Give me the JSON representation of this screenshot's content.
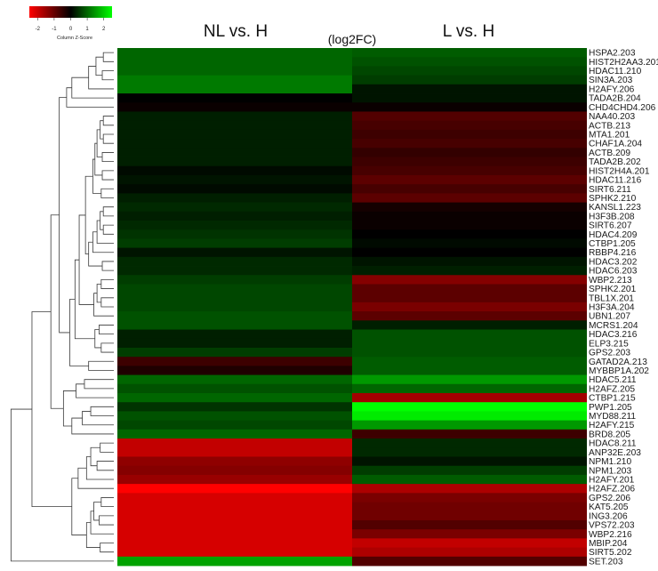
{
  "chart_data": {
    "type": "heatmap",
    "title": "(log2FC)",
    "columns": [
      "NL vs. H",
      "L vs. H"
    ],
    "rows": [
      "HSPA2.203",
      "HIST2H2AA3.201",
      "HDAC11.210",
      "SIN3A.203",
      "H2AFY.206",
      "TADA2B.204",
      "CHD4CHD4.206",
      "NAA40.203",
      "ACTB.213",
      "MTA1.201",
      "CHAF1A.204",
      "ACTB.209",
      "TADA2B.202",
      "HIST2H4A.201",
      "HDAC11.216",
      "SIRT6.211",
      "SPHK2.210",
      "KANSL1.223",
      "H3F3B.208",
      "SIRT6.207",
      "HDAC4.209",
      "CTBP1.205",
      "RBBP4.216",
      "HDAC3.202",
      "HDAC6.203",
      "WBP2.213",
      "SPHK2.201",
      "TBL1X.201",
      "H3F3A.204",
      "UBN1.207",
      "MCRS1.204",
      "HDAC3.216",
      "ELP3.215",
      "GPS2.203",
      "GATAD2A.213",
      "MYBBP1A.202",
      "HDAC5.211",
      "H2AFZ.205",
      "CTBP1.215",
      "PWP1.205",
      "MYD88.211",
      "H2AFY.215",
      "BRD8.205",
      "HDAC8.211",
      "ANP32E.203",
      "NPM1.210",
      "NPM1.203",
      "H2AFY.201",
      "H2AFZ.206",
      "GPS2.206",
      "KAT5.205",
      "ING3.206",
      "VPS72.203",
      "WBP2.216",
      "MBIP.204",
      "SIRT5.202",
      "SET.203"
    ],
    "values": [
      [
        1.0,
        0.9
      ],
      [
        1.0,
        0.8
      ],
      [
        1.0,
        0.7
      ],
      [
        1.2,
        0.6
      ],
      [
        1.2,
        0.2
      ],
      [
        0.0,
        0.2
      ],
      [
        -0.1,
        -0.1
      ],
      [
        0.3,
        -0.8
      ],
      [
        0.3,
        -0.7
      ],
      [
        0.3,
        -0.6
      ],
      [
        0.3,
        -0.7
      ],
      [
        0.3,
        -0.5
      ],
      [
        0.3,
        -0.6
      ],
      [
        0.1,
        -0.7
      ],
      [
        0.2,
        -0.9
      ],
      [
        0.1,
        -0.7
      ],
      [
        0.3,
        -0.9
      ],
      [
        0.4,
        -0.2
      ],
      [
        0.3,
        -0.1
      ],
      [
        0.4,
        -0.1
      ],
      [
        0.5,
        0.0
      ],
      [
        0.6,
        0.1
      ],
      [
        0.2,
        0.0
      ],
      [
        0.4,
        0.2
      ],
      [
        0.4,
        0.3
      ],
      [
        0.6,
        -1.3
      ],
      [
        0.7,
        -0.9
      ],
      [
        0.7,
        -0.9
      ],
      [
        0.7,
        -1.2
      ],
      [
        0.8,
        -0.9
      ],
      [
        0.8,
        0.3
      ],
      [
        0.3,
        0.8
      ],
      [
        0.3,
        0.8
      ],
      [
        0.6,
        0.8
      ],
      [
        -0.6,
        0.9
      ],
      [
        -0.3,
        0.9
      ],
      [
        1.0,
        1.5
      ],
      [
        0.8,
        1.0
      ],
      [
        1.0,
        -1.6
      ],
      [
        0.5,
        2.5
      ],
      [
        0.8,
        2.3
      ],
      [
        0.7,
        1.5
      ],
      [
        1.0,
        -0.6
      ],
      [
        -1.9,
        0.4
      ],
      [
        -1.9,
        0.4
      ],
      [
        -1.4,
        0.2
      ],
      [
        -1.3,
        0.6
      ],
      [
        -1.5,
        0.9
      ],
      [
        -2.6,
        -1.7
      ],
      [
        -2.1,
        -1.2
      ],
      [
        -2.1,
        -1.1
      ],
      [
        -2.1,
        -1.1
      ],
      [
        -2.1,
        -0.8
      ],
      [
        -2.1,
        -1.2
      ],
      [
        -2.1,
        -1.9
      ],
      [
        -2.1,
        -1.7
      ],
      [
        1.6,
        -0.8
      ]
    ],
    "color_scale": {
      "low": "#ff0000",
      "mid": "#000000",
      "high": "#00ff00",
      "range": [
        -2.5,
        2.5
      ]
    },
    "legend": {
      "title": "Column Z-Score",
      "ticks": [
        "-2",
        "-1",
        "0",
        "1",
        "2"
      ],
      "placement": "top-left"
    },
    "dendrogram": "row dendrogram on left"
  }
}
